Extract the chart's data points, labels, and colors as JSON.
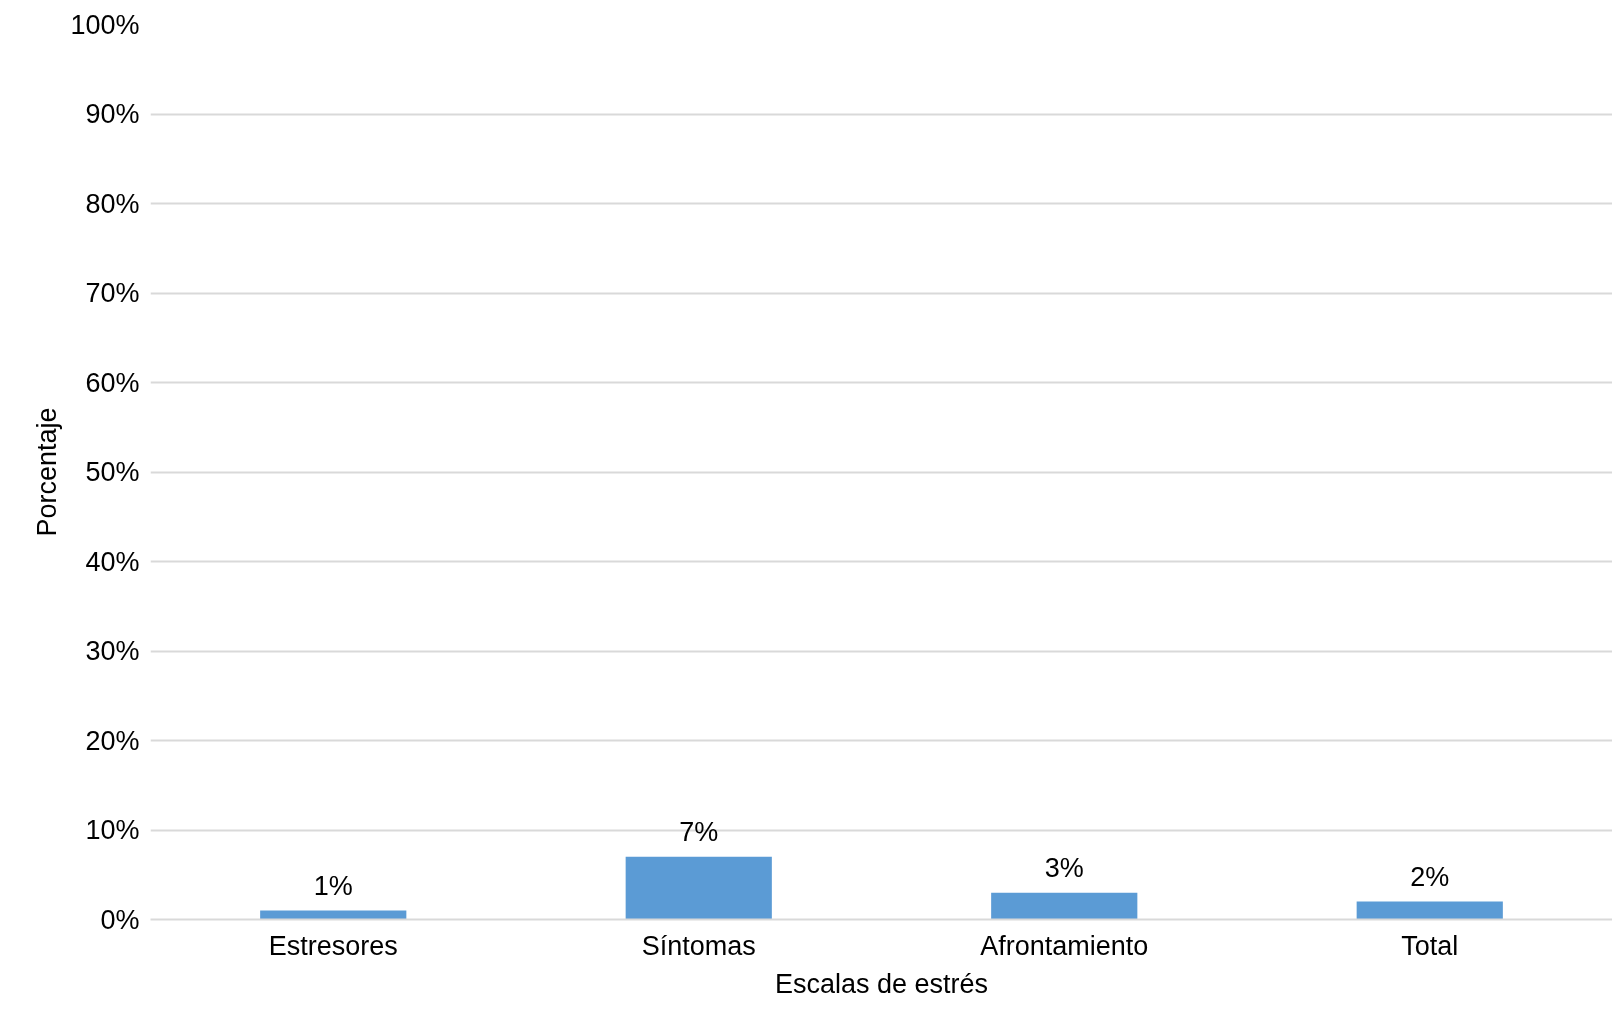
{
  "chart_data": {
    "type": "bar",
    "xlabel": "Escalas de estrés",
    "ylabel": "Porcentaje",
    "categories": [
      "Estresores",
      "Síntomas",
      "Afrontamiento",
      "Total"
    ],
    "values": [
      1,
      7,
      3,
      2
    ],
    "color": "#5b9bd5",
    "data_labels": true,
    "value_labels": [
      "1%",
      "7%",
      "3%",
      "2%"
    ],
    "ylim": [
      0,
      100
    ],
    "yticks": [
      {
        "value": 0,
        "label": "0%"
      },
      {
        "value": 10,
        "label": "10%"
      },
      {
        "value": 20,
        "label": "20%"
      },
      {
        "value": 30,
        "label": "30%"
      },
      {
        "value": 40,
        "label": "40%"
      },
      {
        "value": 50,
        "label": "50%"
      },
      {
        "value": 60,
        "label": "60%"
      },
      {
        "value": 70,
        "label": "70%"
      },
      {
        "value": 80,
        "label": "80%"
      },
      {
        "value": 90,
        "label": "90%"
      },
      {
        "value": 100,
        "label": "100%"
      }
    ],
    "grid": "y"
  }
}
